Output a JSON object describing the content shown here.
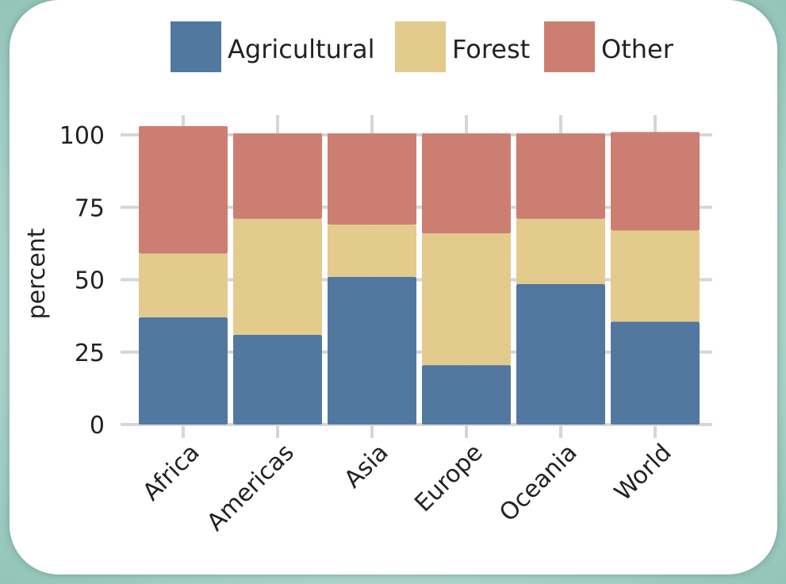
{
  "chart_data": {
    "type": "bar",
    "stacked": true,
    "categories": [
      "Africa",
      "Americas",
      "Asia",
      "Europe",
      "Oceania",
      "World"
    ],
    "series": [
      {
        "name": "Agricultural",
        "color": "#53789f",
        "values": [
          37,
          31,
          51,
          20.5,
          48.5,
          35.5
        ]
      },
      {
        "name": "Forest",
        "color": "#e3cb8d",
        "values": [
          22,
          40,
          18,
          45.5,
          22.5,
          31.5
        ]
      },
      {
        "name": "Other",
        "color": "#cd7e72",
        "values": [
          44,
          29.5,
          31.5,
          34.5,
          29.5,
          34
        ]
      }
    ],
    "ylabel": "percent",
    "yticks": [
      0,
      25,
      50,
      75,
      100
    ],
    "ylim": [
      0,
      100
    ],
    "grid": true,
    "legend_position": "top"
  }
}
